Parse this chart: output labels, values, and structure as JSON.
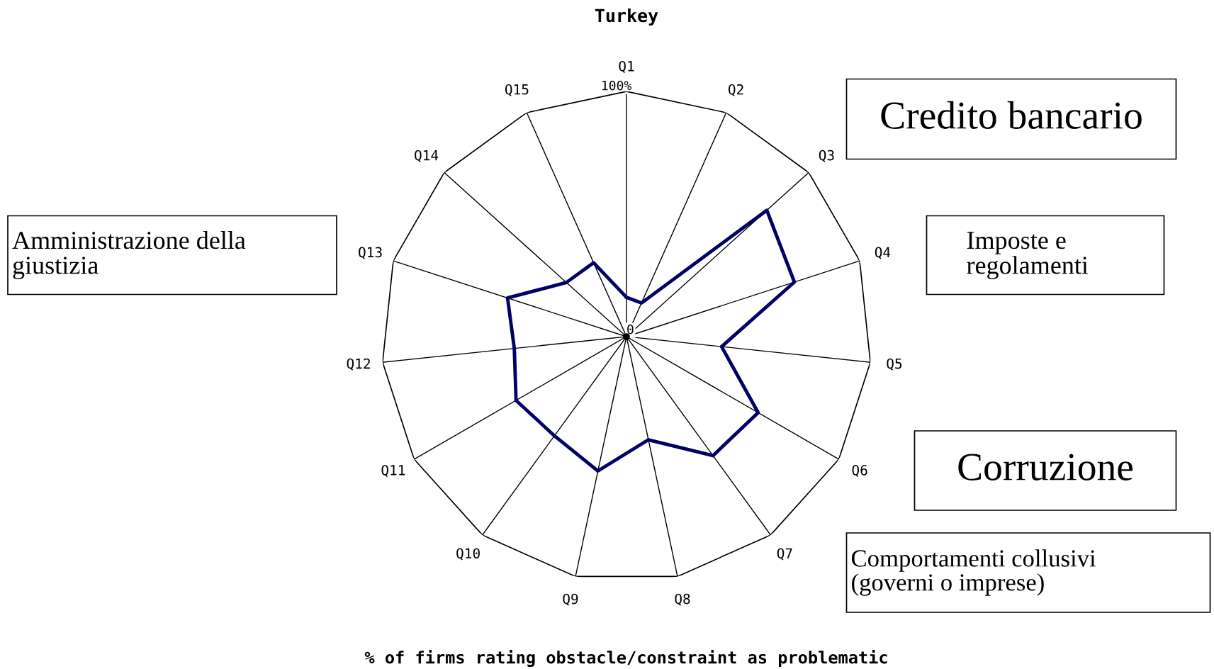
{
  "chart_data": {
    "type": "radar",
    "title": "Turkey",
    "categories": [
      "Q1",
      "Q2",
      "Q3",
      "Q4",
      "Q5",
      "Q6",
      "Q7",
      "Q8",
      "Q9",
      "Q10",
      "Q11",
      "Q12",
      "Q13",
      "Q14",
      "Q15"
    ],
    "series": [
      {
        "color": "#000066",
        "values": [
          16,
          15,
          77,
          72,
          39,
          62,
          60,
          43,
          56,
          50,
          52,
          46,
          51,
          33,
          33
        ]
      }
    ],
    "ylim": [
      0,
      100
    ],
    "yticks": [
      0,
      {
        "value": 100,
        "label": "100%"
      }
    ],
    "grid": true,
    "annotations": [
      "Credito bancario",
      "Imposte e\nregolamenti",
      "Amministrazione della\ngiustizia",
      "Corruzione",
      "Comportamenti collusivi\n(governi o imprese)",
      "% of firms rating obstacle/constraint as problematic"
    ]
  }
}
